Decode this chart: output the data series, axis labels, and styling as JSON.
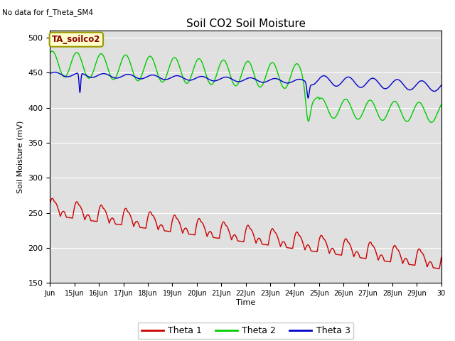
{
  "title": "Soil CO2 Soil Moisture",
  "ylabel": "Soil Moisture (mV)",
  "xlabel": "Time",
  "no_data_text": "No data for f_Theta_SM4",
  "annotation_text": "TA_soilco2",
  "ylim": [
    150,
    510
  ],
  "yticks": [
    150,
    200,
    250,
    300,
    350,
    400,
    450,
    500
  ],
  "xtick_labels": [
    "Jun",
    "15Jun",
    "16Jun",
    "17Jun",
    "18Jun",
    "19Jun",
    "20Jun",
    "21Jun",
    "22Jun",
    "23Jun",
    "24Jun",
    "25Jun",
    "26Jun",
    "27Jun",
    "28Jun",
    "29Jun",
    "30"
  ],
  "colors": {
    "theta1": "#cc0000",
    "theta2": "#00cc00",
    "theta3": "#0000cc",
    "background": "#e0e0e0",
    "annotation_bg": "#ffffcc",
    "annotation_border": "#999900"
  },
  "legend_labels": [
    "Theta 1",
    "Theta 2",
    "Theta 3"
  ]
}
